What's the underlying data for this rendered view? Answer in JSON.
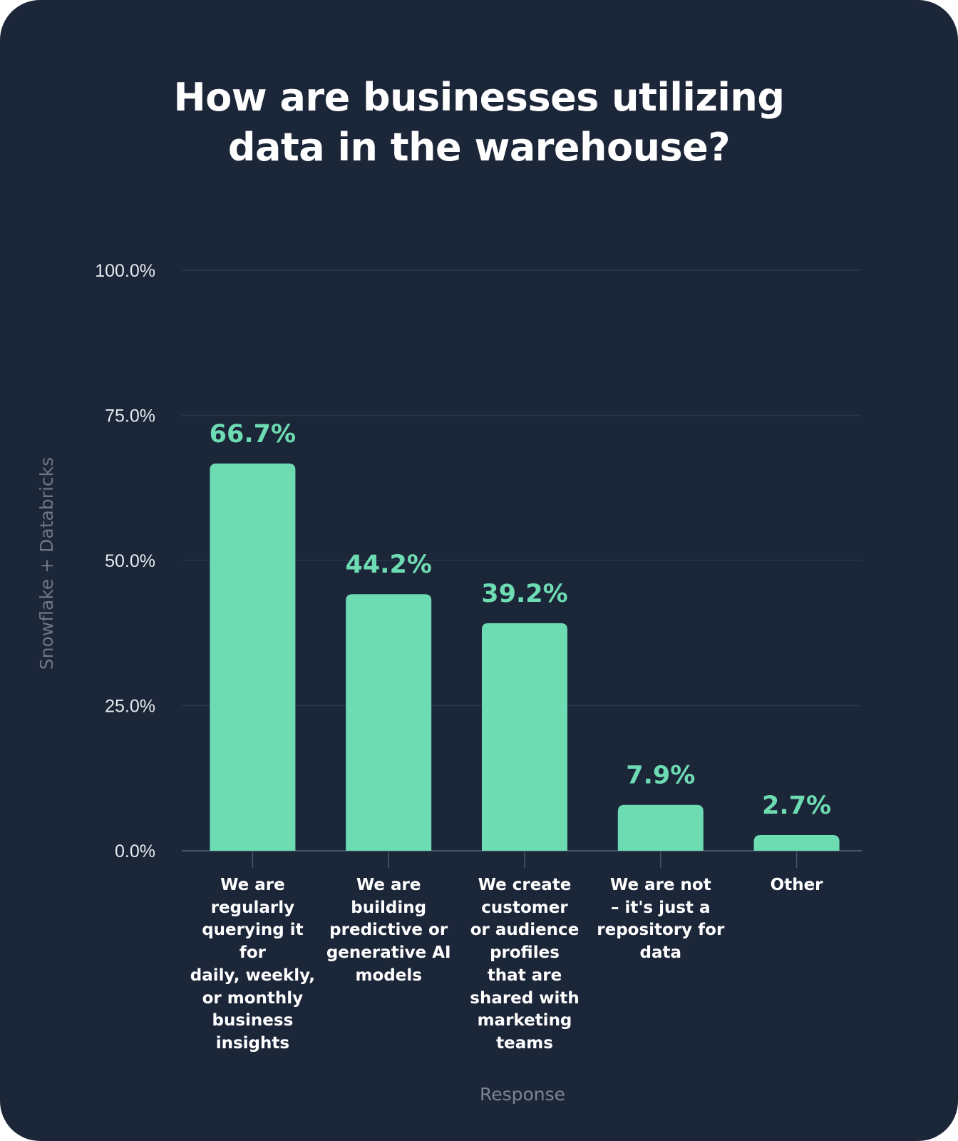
{
  "chart_data": {
    "type": "bar",
    "title_lines": [
      "How are businesses utilizing",
      "data in the warehouse?"
    ],
    "xlabel": "Response",
    "ylabel": "Snowflake + Databricks",
    "ylim": [
      0,
      100
    ],
    "yticks": [
      "0.0%",
      "25.0%",
      "50.0%",
      "75.0%",
      "100.0%"
    ],
    "categories": [
      [
        "We are",
        "regularly",
        "querying it for",
        "daily, weekly,",
        "or monthly",
        "business",
        "insights"
      ],
      [
        "We are",
        "building",
        "predictive or",
        "generative AI",
        "models"
      ],
      [
        "We create",
        "customer",
        "or audience",
        "profiles",
        "that are",
        "shared with",
        "marketing",
        "teams"
      ],
      [
        "We are not",
        "– it's just a",
        "repository for",
        "data"
      ],
      [
        "Other"
      ]
    ],
    "values": [
      66.7,
      44.2,
      39.2,
      7.9,
      2.7
    ],
    "value_labels": [
      "66.7%",
      "44.2%",
      "39.2%",
      "7.9%",
      "2.7%"
    ],
    "grid": true,
    "legend": "none",
    "colors": {
      "background": "#1c2639",
      "bar": "#6ddcb2",
      "grid": "#2b354a",
      "value_label": "#6ddcb2"
    }
  }
}
